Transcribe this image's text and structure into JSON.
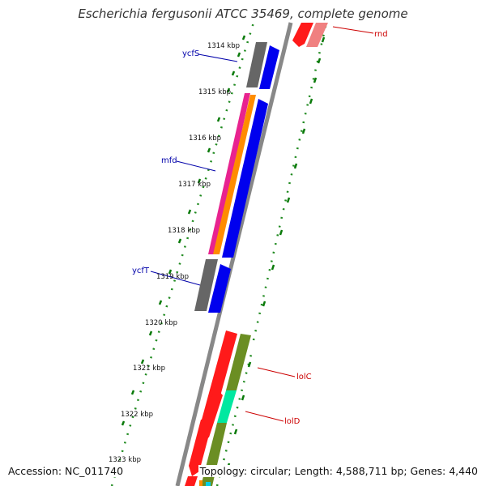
{
  "title": "Escherichia fergusonii ATCC 35469, complete genome",
  "footer": {
    "accession": "Accession: NC_011740",
    "topology": "Topology: circular; Length: 4,588,711 bp; Genes: 4,440"
  },
  "colors": {
    "backbone": "#888888",
    "dotted_ring": "#1f8a1f",
    "tick_mark": "#0a7a0a",
    "forward_cds": "#0000ee",
    "gray_cds": "#666666",
    "magenta_feature": "#e8238f",
    "orange_feature": "#ff8c00",
    "red_feature": "#ff1a1a",
    "pink_feature": "#f08080",
    "olive_feature": "#6b8e23",
    "aqua_feature": "#00e8a0",
    "blue_label": "#0000aa",
    "red_label": "#cc0000"
  },
  "kbp_ticks": [
    "1314 kbp",
    "1315 kbp",
    "1316 kbp",
    "1317 kbp",
    "1318 kbp",
    "1319 kbp",
    "1320 kbp",
    "1321 kbp",
    "1322 kbp",
    "1323 kbp"
  ],
  "gene_labels": [
    {
      "text": "ycfS",
      "color": "blue"
    },
    {
      "text": "mfd",
      "color": "blue"
    },
    {
      "text": "ycfT",
      "color": "blue"
    },
    {
      "text": "rnd",
      "color": "red"
    },
    {
      "text": "lolC",
      "color": "red"
    },
    {
      "text": "lolD",
      "color": "red"
    }
  ]
}
